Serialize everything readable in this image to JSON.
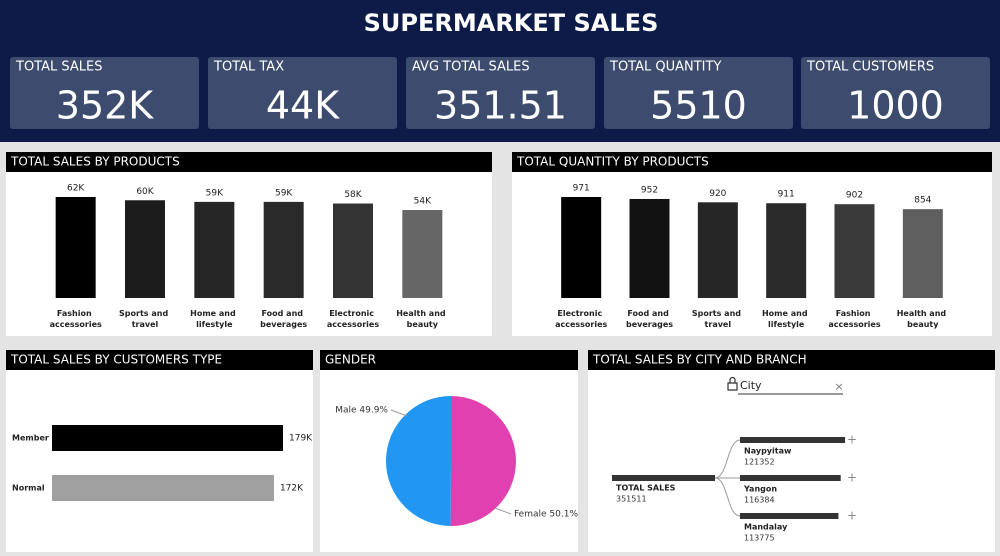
{
  "header": {
    "title": "SUPERMARKET SALES"
  },
  "kpis": [
    {
      "label": "TOTAL SALES",
      "value": "352K"
    },
    {
      "label": "TOTAL TAX",
      "value": "44K"
    },
    {
      "label": "AVG TOTAL SALES",
      "value": "351.51"
    },
    {
      "label": "TOTAL QUANTITY",
      "value": "5510"
    },
    {
      "label": "TOTAL CUSTOMERS",
      "value": "1000"
    }
  ],
  "chart_data": [
    {
      "type": "bar",
      "title": "TOTAL SALES BY PRODUCTS",
      "categories": [
        "Fashion accessories",
        "Sports and travel",
        "Home and lifestyle",
        "Food and beverages",
        "Electronic accessories",
        "Health and beauty"
      ],
      "values": [
        62,
        60,
        59,
        59,
        58,
        54
      ],
      "value_labels": [
        "62K",
        "60K",
        "59K",
        "59K",
        "58K",
        "54K"
      ],
      "colors": [
        "#000000",
        "#1c1c1c",
        "#262626",
        "#2a2a2a",
        "#333333",
        "#666666"
      ]
    },
    {
      "type": "bar",
      "title": "TOTAL QUANTITY BY PRODUCTS",
      "categories": [
        "Electronic accessories",
        "Food and beverages",
        "Sports and travel",
        "Home and lifestyle",
        "Fashion accessories",
        "Health and beauty"
      ],
      "values": [
        971,
        952,
        920,
        911,
        902,
        854
      ],
      "colors": [
        "#000000",
        "#121212",
        "#262626",
        "#2a2a2a",
        "#3a3a3a",
        "#5f5f5f"
      ]
    },
    {
      "type": "hbar",
      "title": "TOTAL SALES BY CUSTOMERS TYPE",
      "categories": [
        "Member",
        "Normal"
      ],
      "values": [
        179,
        172
      ],
      "value_labels": [
        "179K",
        "172K"
      ],
      "colors": [
        "#000000",
        "#a0a0a0"
      ]
    },
    {
      "type": "pie",
      "title": "GENDER",
      "categories": [
        "Male",
        "Female"
      ],
      "values": [
        49.9,
        50.1
      ],
      "value_labels": [
        "Male 49.9%",
        "Female 50.1%"
      ],
      "colors": [
        "#2196f3",
        "#e040b0"
      ]
    }
  ],
  "decomposition": {
    "title": "TOTAL SALES BY CITY AND BRANCH",
    "filter": "City",
    "root": {
      "label": "TOTAL SALES",
      "value": 351511
    },
    "children": [
      {
        "label": "Naypyitaw",
        "value": 121352
      },
      {
        "label": "Yangon",
        "value": 116384
      },
      {
        "label": "Mandalay",
        "value": 113775
      }
    ]
  }
}
